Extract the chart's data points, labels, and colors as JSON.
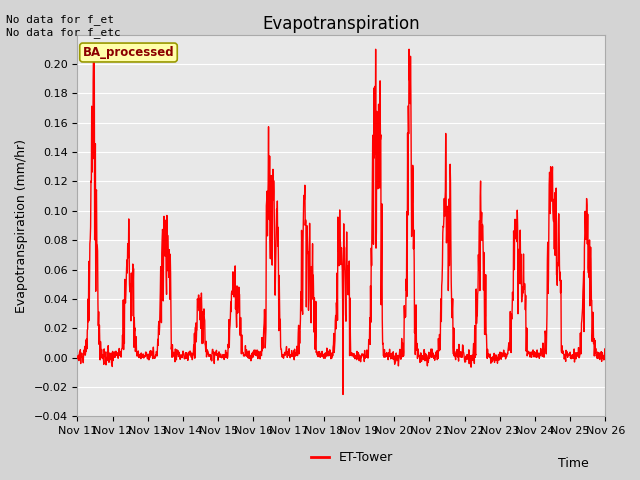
{
  "title": "Evapotranspiration",
  "ylabel": "Evapotranspiration (mm/hr)",
  "xlabel": "Time",
  "ylim": [
    -0.04,
    0.22
  ],
  "yticks": [
    -0.04,
    -0.02,
    0.0,
    0.02,
    0.04,
    0.06,
    0.08,
    0.1,
    0.12,
    0.14,
    0.16,
    0.18,
    0.2
  ],
  "line_color": "#ff0000",
  "line_width": 1.0,
  "axes_bg_color": "#e8e8e8",
  "fig_bg_color": "#d4d4d4",
  "grid_color": "#ffffff",
  "annotation_text": "No data for f_et\nNo data for f_etc",
  "box_label": "BA_processed",
  "box_facecolor": "#ffffaa",
  "box_edgecolor": "#999900",
  "legend_label": "ET-Tower",
  "x_tick_labels": [
    "Nov 11",
    "Nov 12",
    "Nov 13",
    "Nov 14",
    "Nov 15",
    "Nov 16",
    "Nov 17",
    "Nov 18",
    "Nov 19",
    "Nov 20",
    "Nov 21",
    "Nov 22",
    "Nov 23",
    "Nov 24",
    "Nov 25",
    "Nov 26"
  ],
  "title_fontsize": 12,
  "label_fontsize": 9,
  "tick_fontsize": 8,
  "annotation_fontsize": 8,
  "n_days": 15,
  "pts_per_day": 96,
  "daily_peaks": [
    0.175,
    0.078,
    0.096,
    0.04,
    0.053,
    0.128,
    0.1,
    0.085,
    0.165,
    0.188,
    0.12,
    0.098,
    0.085,
    0.13,
    0.092
  ],
  "daily_peaks2": [
    0.0,
    0.066,
    0.085,
    0.033,
    0.038,
    0.105,
    0.076,
    0.073,
    0.148,
    0.0,
    0.112,
    0.0,
    0.074,
    0.105,
    0.075
  ],
  "daily_peaks3": [
    0.0,
    0.0,
    0.0,
    0.0,
    0.0,
    0.095,
    0.08,
    0.072,
    0.0,
    0.0,
    0.0,
    0.0,
    0.072,
    0.085,
    0.0
  ]
}
